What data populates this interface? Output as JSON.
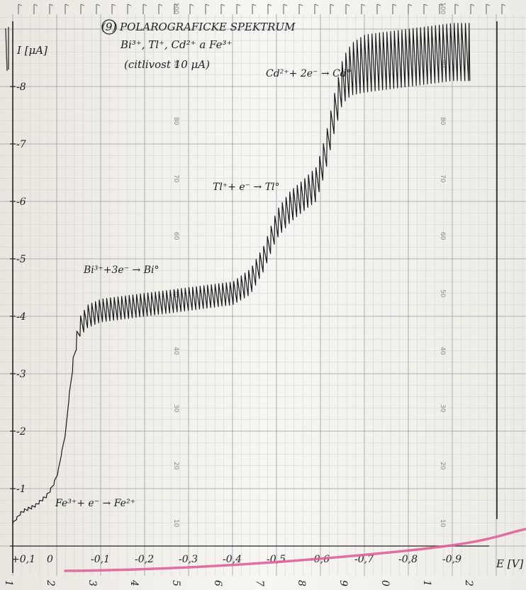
{
  "chart_data": {
    "type": "line",
    "title_lines": [
      "(9) POLAROGRAFICKE SPEKTRUM",
      "Bi³⁺, Tl⁺, Cd²⁺ a Fe³⁺",
      "(citlivost 10 μA)"
    ],
    "xlabel": "E [V]",
    "ylabel": "I [μA]",
    "xlim": [
      0.12,
      -1.1
    ],
    "ylim": [
      0.4,
      -8.6
    ],
    "x_tick_labels": [
      "+0,1",
      "0",
      "-0,1",
      "-0,2",
      "-0,3",
      "-0,4",
      "-0,5",
      "-0,6",
      "-0,7",
      "-0,8",
      "-0,9"
    ],
    "y_tick_labels": [
      "-1",
      "-2",
      "-3",
      "-4",
      "-5",
      "-6",
      "-7",
      "-8"
    ],
    "grid_labels": [
      "10",
      "20",
      "30",
      "40",
      "50",
      "60",
      "70",
      "80",
      "90",
      "100"
    ],
    "bottom_marks": [
      "1",
      "2",
      "3",
      "4",
      "5",
      "6",
      "7",
      "8",
      "9",
      "0",
      "1",
      "2"
    ],
    "annotations": [
      "Fe³⁺+ e⁻ → Fe²⁺",
      "Bi³⁺+3e⁻ → Bi°",
      "Tl⁺+ e⁻ → Tl°",
      "Cd²⁺+ 2e⁻ → Cd°"
    ],
    "series": [
      {
        "x": [
          0.1,
          0.08,
          0.05,
          0.02,
          0.0,
          -0.02,
          -0.03,
          -0.04,
          -0.05,
          -0.07,
          -0.1,
          -0.15,
          -0.2,
          -0.25,
          -0.3,
          -0.35,
          -0.4,
          -0.44,
          -0.47,
          -0.5,
          -0.53,
          -0.56,
          -0.59,
          -0.61,
          -0.63,
          -0.65,
          -0.67,
          -0.7,
          -0.75,
          -0.8,
          -0.85,
          -0.9,
          -0.94
        ],
        "y": [
          -0.4,
          -0.6,
          -0.7,
          -0.9,
          -1.2,
          -2.0,
          -2.8,
          -3.4,
          -3.8,
          -4.0,
          -4.1,
          -4.15,
          -4.2,
          -4.25,
          -4.3,
          -4.35,
          -4.4,
          -4.6,
          -5.0,
          -5.6,
          -5.9,
          -6.1,
          -6.3,
          -6.8,
          -7.5,
          -8.1,
          -8.3,
          -8.4,
          -8.45,
          -8.5,
          -8.55,
          -8.6,
          -8.6
        ],
        "oscillation_amplitude": [
          0.05,
          0.06,
          0.06,
          0.07,
          0.08,
          0.1,
          0.15,
          0.3,
          0.35,
          0.4,
          0.4,
          0.4,
          0.4,
          0.4,
          0.4,
          0.4,
          0.4,
          0.45,
          0.45,
          0.5,
          0.55,
          0.55,
          0.6,
          0.65,
          0.7,
          0.8,
          0.9,
          1.0,
          1.0,
          1.0,
          1.0,
          1.0,
          1.0
        ]
      }
    ],
    "grid": true,
    "legend": "none",
    "colors": {
      "trace": "#1a1a1a",
      "grid": "#9a9a9a",
      "highlighter": "#e0609a",
      "paper": "#f5f3ee"
    }
  }
}
